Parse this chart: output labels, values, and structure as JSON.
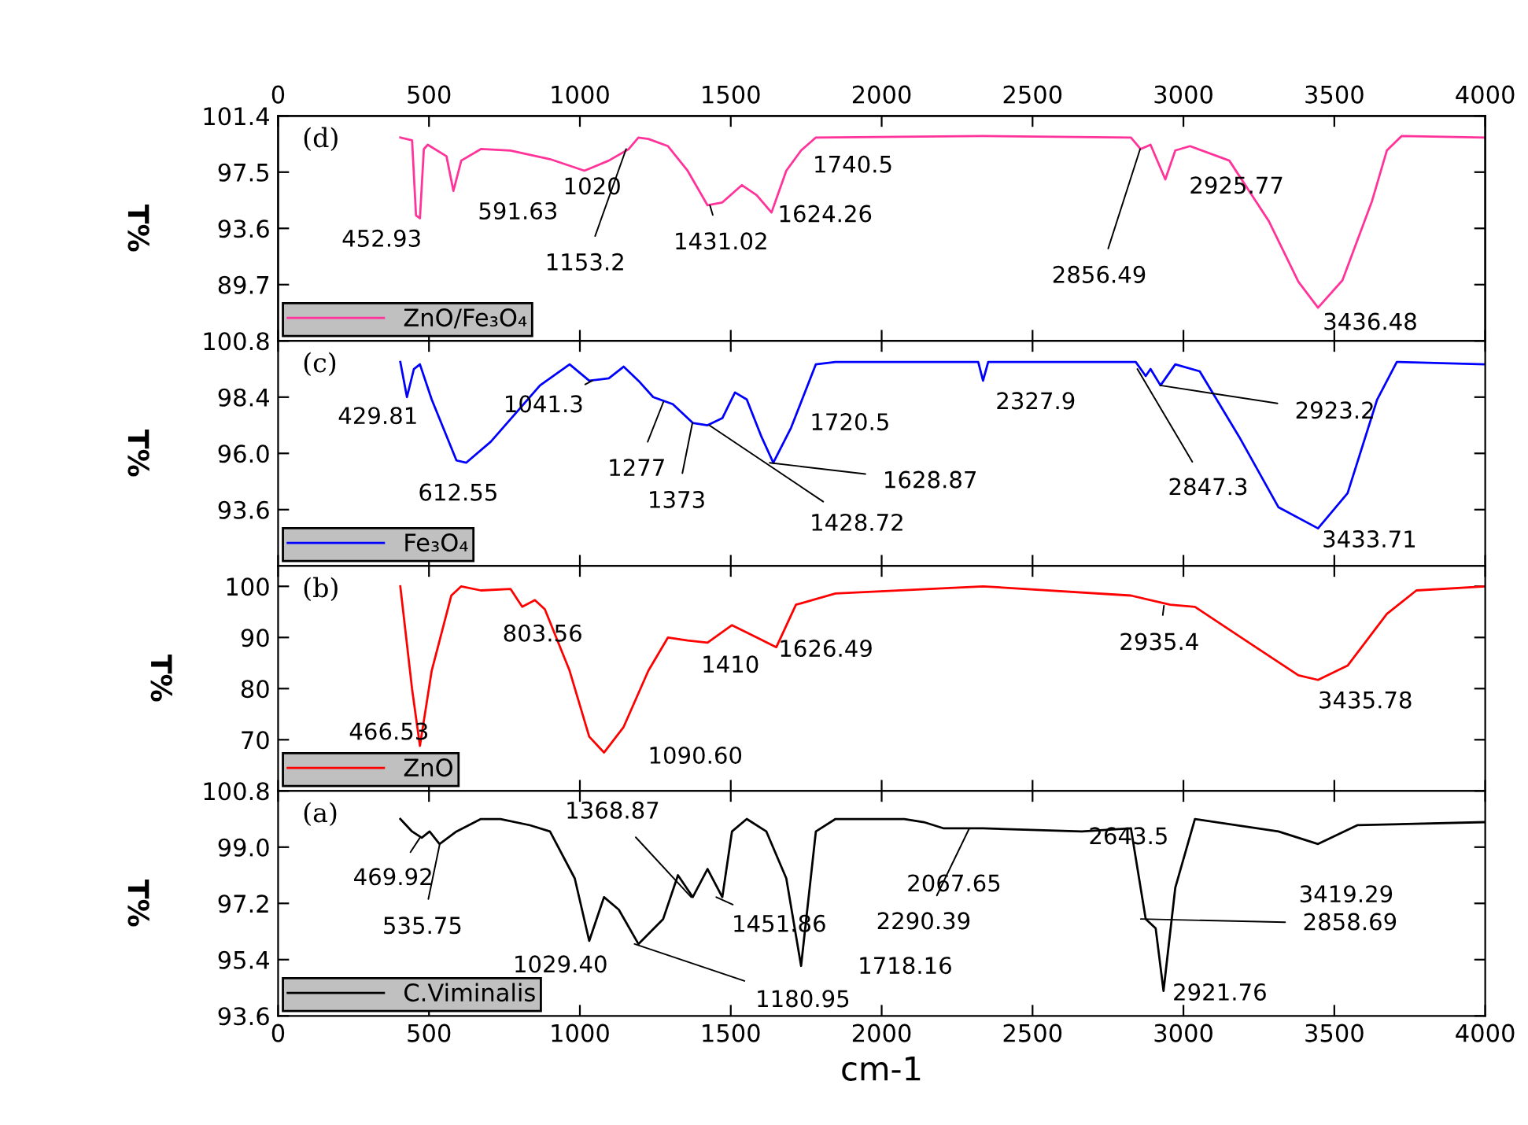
{
  "chart_data": [
    {
      "type": "line",
      "ylabel": "T%",
      "legend": "bottom left",
      "grid": false,
      "tick_labels": "y",
      "xlim": [
        0,
        4000
      ],
      "xticks": [
        0,
        500,
        1000,
        1500,
        2000,
        2500,
        3000,
        3500,
        4000
      ],
      "x2lim": [
        0,
        4000
      ],
      "x2ticks": [
        0,
        500,
        1000,
        1500,
        2000,
        2500,
        3000,
        3500,
        4000
      ],
      "ylim": [
        85.8,
        101.4
      ],
      "yticks": [
        89.7,
        93.6,
        97.5,
        101.4
      ],
      "series": [
        {
          "name": "ZnO/Fe₃O₄",
          "color": "#ff3399",
          "x": [
            405,
            444,
            457,
            470,
            483,
            496,
            558,
            581,
            607,
            672,
            770,
            901,
            1015,
            1096,
            1162,
            1194,
            1227,
            1292,
            1357,
            1423,
            1472,
            1537,
            1586,
            1635,
            1684,
            1733,
            1782,
            2336,
            2826,
            2858,
            2891,
            2940,
            2973,
            3022,
            3152,
            3283,
            3381,
            3446,
            3527,
            3625,
            3674,
            3723,
            4000
          ],
          "values": [
            99.9,
            99.7,
            94.5,
            94.3,
            99.1,
            99.4,
            98.6,
            96.2,
            98.3,
            99.1,
            99.0,
            98.4,
            97.6,
            98.3,
            99.1,
            99.9,
            99.8,
            99.3,
            97.6,
            95.2,
            95.4,
            96.6,
            95.9,
            94.7,
            97.6,
            99.0,
            99.9,
            100.0,
            99.9,
            99.1,
            99.4,
            97.0,
            99.0,
            99.3,
            98.3,
            94.1,
            89.9,
            88.1,
            90.0,
            95.5,
            99.0,
            100.0,
            99.9
          ]
        }
      ],
      "annotations": [
        "(d)",
        {
          "text": "452.93",
          "x": 452.93,
          "y": 94.3
        },
        {
          "text": "591.63",
          "x": 591.63,
          "y": 96.2
        },
        {
          "text": "1020",
          "x": 1020,
          "y": 97.6
        },
        {
          "text": "1153.2",
          "x": 1153.2,
          "y": 99.1
        },
        {
          "text": "1431.02",
          "x": 1431.02,
          "y": 95.2
        },
        {
          "text": "1624.26",
          "x": 1624.26,
          "y": 94.7
        },
        {
          "text": "1740.5",
          "x": 1740.5,
          "y": 99.0
        },
        {
          "text": "2856.49",
          "x": 2856.49,
          "y": 99.1
        },
        {
          "text": "2925.77",
          "x": 2925.77,
          "y": 97.0
        },
        {
          "text": "3436.48",
          "x": 3436.48,
          "y": 88.1
        }
      ]
    },
    {
      "type": "line",
      "ylabel": "T%",
      "legend": "bottom left",
      "grid": false,
      "tick_labels": "y",
      "xlim": [
        0,
        4000
      ],
      "xticks": [
        0,
        500,
        1000,
        1500,
        2000,
        2500,
        3000,
        3500,
        4000
      ],
      "ylim": [
        91.2,
        100.8
      ],
      "yticks": [
        93.6,
        {
          "value": 96,
          "label": "96.0"
        },
        98.4,
        100.8
      ],
      "series": [
        {
          "name": "Fe₃O₄",
          "color": "#0000ff",
          "x": [
            405,
            427,
            450,
            470,
            509,
            591,
            623,
            705,
            868,
            966,
            1031,
            1096,
            1145,
            1194,
            1243,
            1308,
            1374,
            1423,
            1472,
            1514,
            1553,
            1602,
            1641,
            1700,
            1782,
            1847,
            2320,
            2336,
            2353,
            2842,
            2875,
            2891,
            2924,
            2973,
            3054,
            3185,
            3315,
            3446,
            3544,
            3642,
            3707,
            4000
          ],
          "values": [
            99.9,
            98.4,
            99.6,
            99.8,
            98.3,
            95.7,
            95.6,
            96.5,
            98.9,
            99.8,
            99.1,
            99.2,
            99.7,
            99.1,
            98.4,
            98.1,
            97.3,
            97.2,
            97.5,
            98.6,
            98.3,
            96.7,
            95.6,
            97.1,
            99.8,
            99.9,
            99.9,
            99.1,
            99.9,
            99.9,
            99.3,
            99.6,
            98.9,
            99.8,
            99.5,
            96.7,
            93.7,
            92.8,
            94.3,
            98.3,
            99.9,
            99.8
          ]
        }
      ],
      "annotations": [
        "(c)",
        {
          "text": "429.81",
          "x": 429.81,
          "y": 98.4
        },
        {
          "text": "612.55",
          "x": 612.55,
          "y": 95.6
        },
        {
          "text": "1041.3",
          "x": 1041.3,
          "y": 99.1
        },
        {
          "text": "1277",
          "x": 1277,
          "y": 98.2
        },
        {
          "text": "1373",
          "x": 1373,
          "y": 97.3
        },
        {
          "text": "1428.72",
          "x": 1428.72,
          "y": 97.2
        },
        {
          "text": "1628.87",
          "x": 1628.87,
          "y": 95.6
        },
        {
          "text": "1720.5",
          "x": 1720.5,
          "y": 97.8
        },
        {
          "text": "2327.9",
          "x": 2327.9,
          "y": 99.1
        },
        {
          "text": "2847.3",
          "x": 2847.3,
          "y": 99.6
        },
        {
          "text": "2923.2",
          "x": 2923.2,
          "y": 98.9
        },
        {
          "text": "3433.71",
          "x": 3433.71,
          "y": 92.8
        }
      ]
    },
    {
      "type": "line",
      "ylabel": "T%",
      "legend": "bottom left",
      "grid": false,
      "tick_labels": "y",
      "xlim": [
        0,
        4000
      ],
      "xticks": [
        0,
        500,
        1000,
        1500,
        2000,
        2500,
        3000,
        3500,
        4000
      ],
      "ylim": [
        60,
        104
      ],
      "yticks": [
        70,
        80,
        90,
        100
      ],
      "series": [
        {
          "name": "ZnO",
          "color": "#ff0000",
          "x": [
            405,
            444,
            470,
            509,
            574,
            607,
            672,
            770,
            809,
            851,
            884,
            966,
            1031,
            1080,
            1145,
            1227,
            1292,
            1357,
            1423,
            1504,
            1586,
            1651,
            1716,
            1847,
            2336,
            2826,
            2956,
            3038,
            3217,
            3381,
            3446,
            3544,
            3674,
            3772,
            4000
          ],
          "values": [
            100,
            79.9,
            68.8,
            83.5,
            98.2,
            100,
            99.2,
            99.5,
            96.0,
            97.3,
            95.5,
            83.5,
            70.6,
            67.5,
            72.5,
            83.5,
            90.0,
            89.4,
            89.0,
            92.4,
            90.0,
            88.1,
            96.4,
            98.6,
            100,
            98.2,
            96.4,
            96.0,
            89.0,
            82.6,
            81.7,
            84.5,
            94.6,
            99.2,
            100
          ]
        }
      ],
      "annotations": [
        "(b)",
        {
          "text": "466.53",
          "x": 466.53,
          "y": 68.8
        },
        {
          "text": "803.56",
          "x": 803.56,
          "y": 96.0
        },
        {
          "text": "1090.60",
          "x": 1090.6,
          "y": 67.5
        },
        {
          "text": "1410",
          "x": 1410,
          "y": 89.0
        },
        {
          "text": "1626.49",
          "x": 1626.49,
          "y": 88.1
        },
        {
          "text": "2935.4",
          "x": 2935.4,
          "y": 96.2
        },
        {
          "text": "3435.78",
          "x": 3435.78,
          "y": 81.7
        }
      ]
    },
    {
      "type": "line",
      "ylabel": "T%",
      "xlabel": "cm-1",
      "legend": "bottom left",
      "grid": false,
      "xlim": [
        0,
        4000
      ],
      "xticks": [
        0,
        500,
        1000,
        1500,
        2000,
        2500,
        3000,
        3500,
        4000
      ],
      "ylim": [
        93.6,
        100.8
      ],
      "yticks": [
        93.6,
        95.4,
        97.2,
        {
          "value": 99,
          "label": "99.0"
        },
        100.8
      ],
      "series": [
        {
          "name": "C.Viminalis",
          "color": "#000000",
          "x": [
            405,
            444,
            476,
            502,
            535,
            591,
            672,
            737,
            835,
            901,
            983,
            1031,
            1080,
            1129,
            1194,
            1276,
            1325,
            1374,
            1423,
            1472,
            1504,
            1553,
            1618,
            1684,
            1733,
            1782,
            1847,
            2075,
            2140,
            2206,
            2336,
            2663,
            2826,
            2875,
            2908,
            2934,
            2973,
            3038,
            3315,
            3446,
            3576,
            4000
          ],
          "values": [
            99.9,
            99.5,
            99.3,
            99.5,
            99.1,
            99.5,
            99.9,
            99.9,
            99.7,
            99.5,
            98.0,
            96.0,
            97.4,
            97.0,
            95.9,
            96.7,
            98.1,
            97.4,
            98.3,
            97.4,
            99.5,
            99.9,
            99.5,
            98.0,
            95.2,
            99.5,
            99.9,
            99.9,
            99.8,
            99.6,
            99.6,
            99.5,
            99.6,
            96.7,
            96.4,
            94.4,
            97.7,
            99.9,
            99.5,
            99.1,
            99.7,
            99.8
          ]
        }
      ],
      "annotations": [
        "(a)",
        {
          "text": "469.92",
          "x": 469.92,
          "y": 99.3
        },
        {
          "text": "535.75",
          "x": 535.75,
          "y": 99.1
        },
        {
          "text": "1368.87",
          "x": 1368.87,
          "y": 97.4
        },
        {
          "text": "1451.86",
          "x": 1451.86,
          "y": 97.4
        },
        {
          "text": "1029.40",
          "x": 1029.4,
          "y": 96.0
        },
        {
          "text": "1180.95",
          "x": 1180.95,
          "y": 95.9
        },
        {
          "text": "1718.16",
          "x": 1718.16,
          "y": 95.2
        },
        {
          "text": "2067.65",
          "x": 2067.65,
          "y": 99.8
        },
        {
          "text": "2290.39",
          "x": 2290.39,
          "y": 99.6
        },
        {
          "text": "2643.5",
          "x": 2643.5,
          "y": 99.5
        },
        {
          "text": "2858.69",
          "x": 2858.69,
          "y": 96.7
        },
        {
          "text": "2921.76",
          "x": 2921.76,
          "y": 94.4
        },
        {
          "text": "3419.29",
          "x": 3419.29,
          "y": 99.1
        }
      ]
    }
  ]
}
